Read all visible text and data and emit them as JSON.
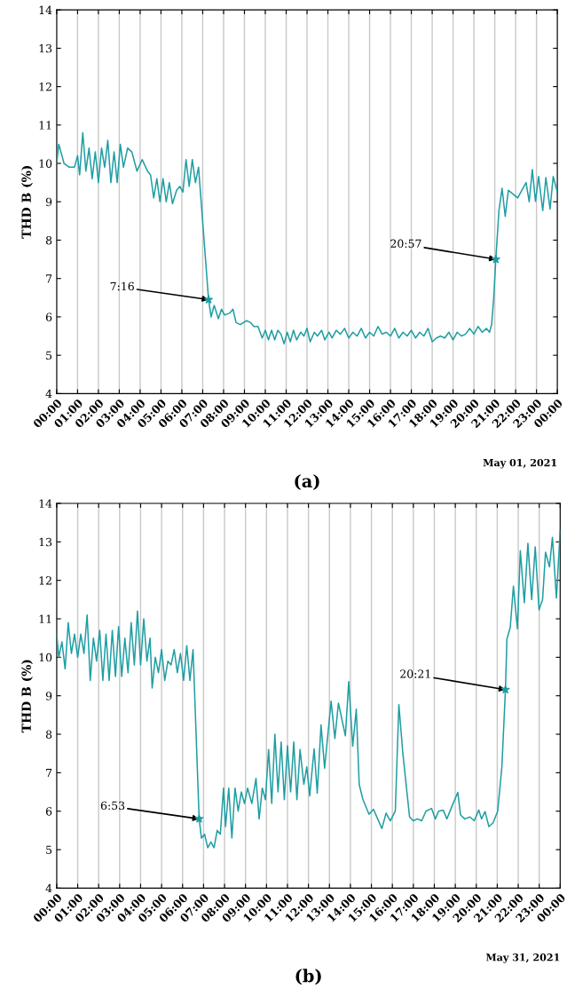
{
  "chart_data": [
    {
      "type": "line",
      "title": "(a)",
      "ylabel": "THD B (%)",
      "annotations": [
        {
          "text": "7:16",
          "x": 7.28,
          "y": 6.45
        },
        {
          "text": "20:57",
          "x": 21.05,
          "y": 7.5
        },
        "May 01, 2021"
      ],
      "xlim": [
        0,
        24
      ],
      "ylim": [
        4,
        14
      ],
      "yticks": [
        4,
        5,
        6,
        7,
        8,
        9,
        10,
        11,
        12,
        13,
        14
      ],
      "xticks": [
        {
          "value": 0,
          "label": "00:00"
        },
        {
          "value": 1,
          "label": "01:00"
        },
        {
          "value": 2,
          "label": "02:00"
        },
        {
          "value": 3,
          "label": "03:00"
        },
        {
          "value": 4,
          "label": "04:00"
        },
        {
          "value": 5,
          "label": "05:00"
        },
        {
          "value": 6,
          "label": "06:00"
        },
        {
          "value": 7,
          "label": "07:00"
        },
        {
          "value": 8,
          "label": "08:00"
        },
        {
          "value": 9,
          "label": "09:00"
        },
        {
          "value": 10,
          "label": "10:00"
        },
        {
          "value": 11,
          "label": "11:00"
        },
        {
          "value": 12,
          "label": "12:00"
        },
        {
          "value": 13,
          "label": "13:00"
        },
        {
          "value": 14,
          "label": "14:00"
        },
        {
          "value": 15,
          "label": "15:00"
        },
        {
          "value": 16,
          "label": "16:00"
        },
        {
          "value": 17,
          "label": "17:00"
        },
        {
          "value": 18,
          "label": "18:00"
        },
        {
          "value": 19,
          "label": "19:00"
        },
        {
          "value": 20,
          "label": "20:00"
        },
        {
          "value": 21,
          "label": "21:00"
        },
        {
          "value": 22,
          "label": "22:00"
        },
        {
          "value": 23,
          "label": "23:00"
        },
        {
          "value": 24,
          "label": "00:00"
        }
      ],
      "grid": "x",
      "series": [
        {
          "color": "#1f9ea3",
          "marker": "none",
          "line_style": "solid",
          "x": [
            0,
            0.1,
            0.35,
            0.6,
            0.85,
            1.0,
            1.1,
            1.25,
            1.4,
            1.55,
            1.7,
            1.85,
            2.0,
            2.15,
            2.3,
            2.45,
            2.6,
            2.75,
            2.9,
            3.05,
            3.2,
            3.4,
            3.6,
            3.85,
            4.1,
            4.35,
            4.5,
            4.65,
            4.8,
            4.95,
            5.1,
            5.25,
            5.4,
            5.55,
            5.75,
            5.9,
            6.05,
            6.2,
            6.35,
            6.5,
            6.65,
            6.8,
            7.28,
            7.4,
            7.55,
            7.75,
            7.9,
            8.05,
            8.3,
            8.45,
            8.6,
            8.8,
            9.1,
            9.3,
            9.45,
            9.65,
            9.85,
            10.0,
            10.15,
            10.3,
            10.45,
            10.6,
            10.75,
            10.9,
            11.05,
            11.2,
            11.35,
            11.5,
            11.7,
            11.85,
            12.0,
            12.15,
            12.35,
            12.5,
            12.7,
            12.85,
            13.05,
            13.2,
            13.4,
            13.6,
            13.8,
            14.0,
            14.2,
            14.4,
            14.6,
            14.8,
            15.0,
            15.2,
            15.4,
            15.6,
            15.8,
            16.0,
            16.2,
            16.4,
            16.6,
            16.8,
            17.0,
            17.2,
            17.4,
            17.6,
            17.8,
            18.0,
            18.2,
            18.4,
            18.6,
            18.8,
            19.0,
            19.2,
            19.4,
            19.6,
            19.8,
            20.0,
            20.2,
            20.4,
            20.6,
            20.75,
            20.85,
            20.95,
            21.05,
            21.2,
            21.35,
            21.5,
            21.65,
            22.1,
            22.5,
            22.65,
            22.8,
            22.95,
            23.1,
            23.3,
            23.45,
            23.65,
            23.8,
            24.0
          ],
          "values": [
            10.0,
            10.5,
            10.0,
            9.9,
            9.9,
            10.2,
            9.7,
            10.8,
            9.8,
            10.4,
            9.6,
            10.3,
            9.5,
            10.4,
            9.9,
            10.6,
            9.5,
            10.3,
            9.5,
            10.5,
            9.9,
            10.4,
            10.3,
            9.8,
            10.1,
            9.8,
            9.7,
            9.1,
            9.6,
            9.0,
            9.6,
            9.0,
            9.5,
            8.95,
            9.3,
            9.4,
            9.25,
            10.1,
            9.4,
            10.1,
            9.5,
            9.9,
            6.45,
            6.0,
            6.3,
            5.95,
            6.2,
            6.05,
            6.1,
            6.2,
            5.85,
            5.8,
            5.9,
            5.85,
            5.75,
            5.75,
            5.45,
            5.65,
            5.4,
            5.65,
            5.4,
            5.65,
            5.55,
            5.3,
            5.6,
            5.35,
            5.65,
            5.4,
            5.6,
            5.5,
            5.7,
            5.35,
            5.6,
            5.5,
            5.65,
            5.4,
            5.6,
            5.45,
            5.65,
            5.55,
            5.7,
            5.45,
            5.6,
            5.5,
            5.7,
            5.45,
            5.6,
            5.5,
            5.75,
            5.55,
            5.6,
            5.5,
            5.7,
            5.45,
            5.6,
            5.5,
            5.65,
            5.45,
            5.6,
            5.5,
            5.7,
            5.35,
            5.45,
            5.5,
            5.45,
            5.6,
            5.4,
            5.6,
            5.5,
            5.55,
            5.7,
            5.55,
            5.75,
            5.6,
            5.7,
            5.6,
            5.8,
            6.5,
            7.5,
            8.77,
            9.35,
            8.62,
            9.3,
            9.1,
            9.5,
            9.0,
            9.84,
            9.01,
            9.66,
            8.77,
            9.63,
            8.81,
            9.66,
            9.25
          ]
        },
        {
          "type": "scatter",
          "color": "#1f9ea3",
          "marker": "star",
          "x": [
            7.28,
            21.05
          ],
          "values": [
            6.45,
            7.5
          ]
        }
      ]
    },
    {
      "type": "line",
      "title": "(b)",
      "ylabel": "THD B (%)",
      "annotations": [
        {
          "text": "6:53",
          "x": 6.79,
          "y": 5.8
        },
        {
          "text": "20:21",
          "x": 21.39,
          "y": 9.16
        },
        "May 31, 2021"
      ],
      "xlim": [
        0,
        24
      ],
      "ylim": [
        4,
        14
      ],
      "yticks": [
        4,
        5,
        6,
        7,
        8,
        9,
        10,
        11,
        12,
        13,
        14
      ],
      "xticks": [
        {
          "value": 0,
          "label": "00:00"
        },
        {
          "value": 1,
          "label": "01:00"
        },
        {
          "value": 2,
          "label": "02:00"
        },
        {
          "value": 3,
          "label": "03:00"
        },
        {
          "value": 4,
          "label": "04:00"
        },
        {
          "value": 5,
          "label": "05:00"
        },
        {
          "value": 6,
          "label": "06:00"
        },
        {
          "value": 7,
          "label": "07:00"
        },
        {
          "value": 8,
          "label": "08:00"
        },
        {
          "value": 9,
          "label": "09:00"
        },
        {
          "value": 10,
          "label": "10:00"
        },
        {
          "value": 11,
          "label": "11:00"
        },
        {
          "value": 12,
          "label": "12:00"
        },
        {
          "value": 13,
          "label": "13:00"
        },
        {
          "value": 14,
          "label": "14:00"
        },
        {
          "value": 15,
          "label": "15:00"
        },
        {
          "value": 16,
          "label": "16:00"
        },
        {
          "value": 17,
          "label": "17:00"
        },
        {
          "value": 18,
          "label": "18:00"
        },
        {
          "value": 19,
          "label": "19:00"
        },
        {
          "value": 20,
          "label": "20:00"
        },
        {
          "value": 21,
          "label": "21:00"
        },
        {
          "value": 22,
          "label": "22:00"
        },
        {
          "value": 23,
          "label": "23:00"
        },
        {
          "value": 24,
          "label": "00:00"
        }
      ],
      "grid": "x",
      "series": [
        {
          "color": "#1f9ea3",
          "marker": "none",
          "line_style": "solid",
          "x": [
            0,
            0.1,
            0.25,
            0.4,
            0.55,
            0.7,
            0.85,
            1.0,
            1.15,
            1.3,
            1.45,
            1.6,
            1.75,
            1.9,
            2.05,
            2.2,
            2.35,
            2.5,
            2.65,
            2.8,
            2.95,
            3.1,
            3.25,
            3.4,
            3.55,
            3.7,
            3.85,
            4.0,
            4.15,
            4.3,
            4.45,
            4.55,
            4.7,
            4.85,
            5.0,
            5.15,
            5.3,
            5.45,
            5.6,
            5.75,
            5.9,
            6.05,
            6.2,
            6.35,
            6.5,
            6.79,
            6.9,
            7.05,
            7.2,
            7.35,
            7.5,
            7.65,
            7.8,
            7.95,
            8.05,
            8.2,
            8.35,
            8.5,
            8.65,
            8.8,
            8.95,
            9.1,
            9.3,
            9.5,
            9.65,
            9.8,
            9.95,
            10.1,
            10.25,
            10.4,
            10.55,
            10.7,
            10.85,
            11.0,
            11.15,
            11.3,
            11.45,
            11.6,
            11.78,
            11.92,
            12.06,
            12.27,
            12.42,
            12.6,
            12.77,
            13.08,
            13.26,
            13.43,
            13.76,
            13.92,
            14.11,
            14.28,
            14.42,
            14.6,
            14.89,
            15.1,
            15.3,
            15.5,
            15.7,
            15.9,
            16.14,
            16.31,
            16.5,
            16.82,
            17.0,
            17.2,
            17.4,
            17.6,
            17.87,
            18.05,
            18.2,
            18.42,
            18.6,
            18.82,
            19.12,
            19.25,
            19.45,
            19.7,
            19.9,
            20.12,
            20.25,
            20.42,
            20.6,
            20.8,
            21.02,
            21.22,
            21.39,
            21.46,
            21.62,
            21.77,
            21.96,
            22.1,
            22.29,
            22.46,
            22.64,
            22.81,
            22.99,
            23.16,
            23.3,
            23.49,
            23.63,
            23.82,
            24.0
          ],
          "values": [
            10.6,
            10.0,
            10.4,
            9.7,
            10.9,
            10.1,
            10.6,
            10.0,
            10.6,
            10.1,
            11.1,
            9.4,
            10.5,
            9.9,
            10.7,
            9.4,
            10.6,
            9.4,
            10.7,
            9.5,
            10.8,
            9.5,
            10.5,
            9.6,
            10.9,
            9.8,
            11.2,
            9.8,
            11.0,
            9.9,
            10.5,
            9.2,
            10.0,
            9.6,
            10.2,
            9.4,
            9.9,
            9.8,
            10.2,
            9.6,
            10.1,
            9.4,
            10.3,
            9.4,
            10.2,
            5.8,
            5.3,
            5.4,
            5.05,
            5.2,
            5.05,
            5.5,
            5.4,
            6.6,
            5.6,
            6.6,
            5.3,
            6.6,
            6.0,
            6.5,
            6.2,
            6.6,
            6.2,
            6.85,
            5.8,
            6.6,
            6.3,
            7.6,
            6.2,
            8.0,
            6.5,
            7.8,
            6.3,
            7.7,
            6.5,
            7.8,
            6.3,
            7.6,
            6.7,
            7.15,
            6.4,
            7.62,
            6.47,
            8.24,
            7.12,
            8.86,
            7.89,
            8.81,
            7.96,
            9.37,
            7.69,
            8.65,
            6.69,
            6.3,
            5.92,
            6.05,
            5.8,
            5.55,
            5.95,
            5.75,
            6.0,
            8.77,
            7.5,
            5.85,
            5.75,
            5.8,
            5.75,
            6.0,
            6.07,
            5.8,
            6.0,
            6.03,
            5.8,
            6.1,
            6.49,
            5.9,
            5.8,
            5.85,
            5.75,
            6.03,
            5.8,
            5.99,
            5.6,
            5.7,
            6.0,
            7.15,
            9.16,
            10.47,
            10.78,
            11.85,
            10.74,
            12.77,
            11.42,
            12.96,
            11.5,
            12.87,
            11.23,
            11.5,
            12.73,
            12.35,
            13.12,
            11.54,
            13.3
          ]
        },
        {
          "type": "scatter",
          "color": "#1f9ea3",
          "marker": "star",
          "x": [
            6.79,
            21.39
          ],
          "values": [
            5.8,
            9.16
          ]
        }
      ]
    }
  ]
}
